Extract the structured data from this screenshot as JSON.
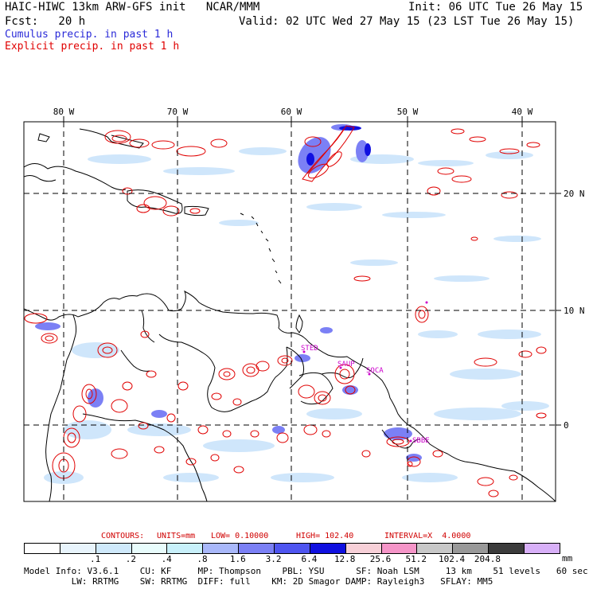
{
  "header": {
    "title": "HAIC-HIWC 13km ARW-GFS init   NCAR/MMM",
    "init": "Init: 06 UTC Tue 26 May 15",
    "forecast": "Fcst:   20 h",
    "valid": "Valid: 02 UTC Wed 27 May 15 (23 LST Tue 26 May 15)"
  },
  "legend": {
    "cumulus": "Cumulus precip. in past 1 h",
    "explicit": "Explicit precip. in past 1 h",
    "cumulus_color": "#2a2ad8",
    "explicit_color": "#e00000"
  },
  "axes": {
    "lon_labels": [
      "80 W",
      "70 W",
      "60 W",
      "50 W",
      "40 W"
    ],
    "lat_labels": [
      "20 N",
      "10 N",
      "0"
    ]
  },
  "stations": {
    "sted": "STED",
    "saup": "SAUP",
    "soca": "SOCA",
    "sbbe": "SBBE",
    "color": "#cc00cc"
  },
  "contours_line": {
    "label": "CONTOURS:",
    "units": "UNITS=mm",
    "low": "LOW= 0.10000",
    "high": "HIGH= 102.40",
    "interval": "INTERVAL=X  4.0000"
  },
  "colorbar": {
    "unit": "mm",
    "tick_labels": [
      ".1",
      ".2",
      ".4",
      ".8",
      "1.6",
      "3.2",
      "6.4",
      "12.8",
      "25.6",
      "51.2",
      "102.4",
      "204.8"
    ],
    "colors": [
      "#ffffff",
      "#e8f4fc",
      "#cfe9fb",
      "#e8fcfc",
      "#c8f0fa",
      "#a9b8fa",
      "#7b80f5",
      "#4f55f0",
      "#1010e0",
      "#f7d0d8",
      "#f595c8",
      "#c8c8c8",
      "#999999",
      "#3c3c3c",
      "#d8b0f8"
    ]
  },
  "footer": {
    "line1": "Model Info: V3.6.1    CU: KF     MP: Thompson    PBL: YSU      SF: Noah LSM     13 km    51 levels   60 sec",
    "line2": "         LW: RRTMG    SW: RRTMG  DIFF: full    KM: 2D Smagor DAMP: Rayleigh3   SFLAY: MM5"
  }
}
